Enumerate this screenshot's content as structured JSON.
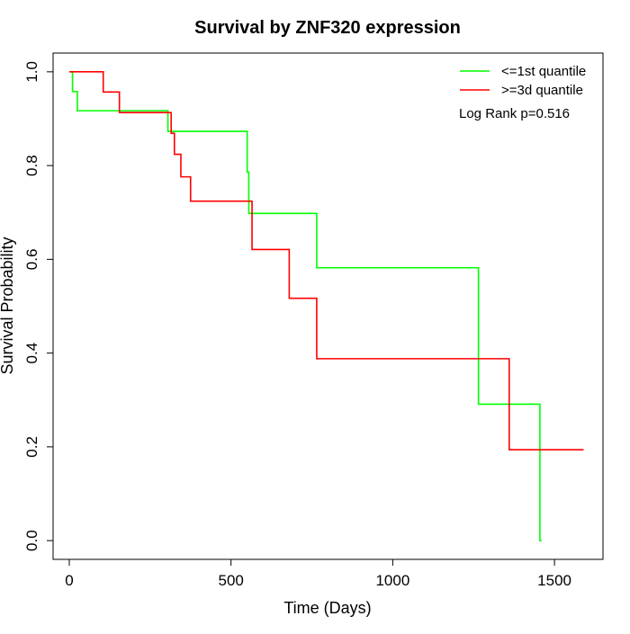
{
  "chart_data": {
    "type": "line",
    "subtype": "kaplan-meier-step",
    "title": "Survival by ZNF320 expression",
    "xlabel": "Time (Days)",
    "ylabel": "Survival Probability",
    "xlim": [
      -50,
      1650
    ],
    "ylim": [
      -0.04,
      1.04
    ],
    "x_ticks": [
      0,
      500,
      1000,
      1500
    ],
    "y_ticks": [
      0.0,
      0.2,
      0.4,
      0.6,
      0.8,
      1.0
    ],
    "x_tick_labels": [
      "0",
      "500",
      "1000",
      "1500"
    ],
    "y_tick_labels": [
      "0.0",
      "0.2",
      "0.4",
      "0.6",
      "0.8",
      "1.0"
    ],
    "grid": false,
    "legend_position": "top-right",
    "annotation": "Log Rank p=0.516",
    "series": [
      {
        "name": "<=1st quantile",
        "color": "#00ff00",
        "x": [
          0,
          10,
          25,
          305,
          550,
          555,
          765,
          1265,
          1455,
          1460
        ],
        "y": [
          1.0,
          0.958,
          0.917,
          0.873,
          0.786,
          0.698,
          0.582,
          0.291,
          0.0,
          0.0
        ]
      },
      {
        "name": ">=3d quantile",
        "color": "#ff0000",
        "x": [
          0,
          105,
          155,
          315,
          325,
          345,
          375,
          565,
          680,
          765,
          1360,
          1590
        ],
        "y": [
          1.0,
          0.957,
          0.913,
          0.869,
          0.824,
          0.776,
          0.724,
          0.621,
          0.517,
          0.388,
          0.194,
          0.194
        ]
      }
    ]
  }
}
